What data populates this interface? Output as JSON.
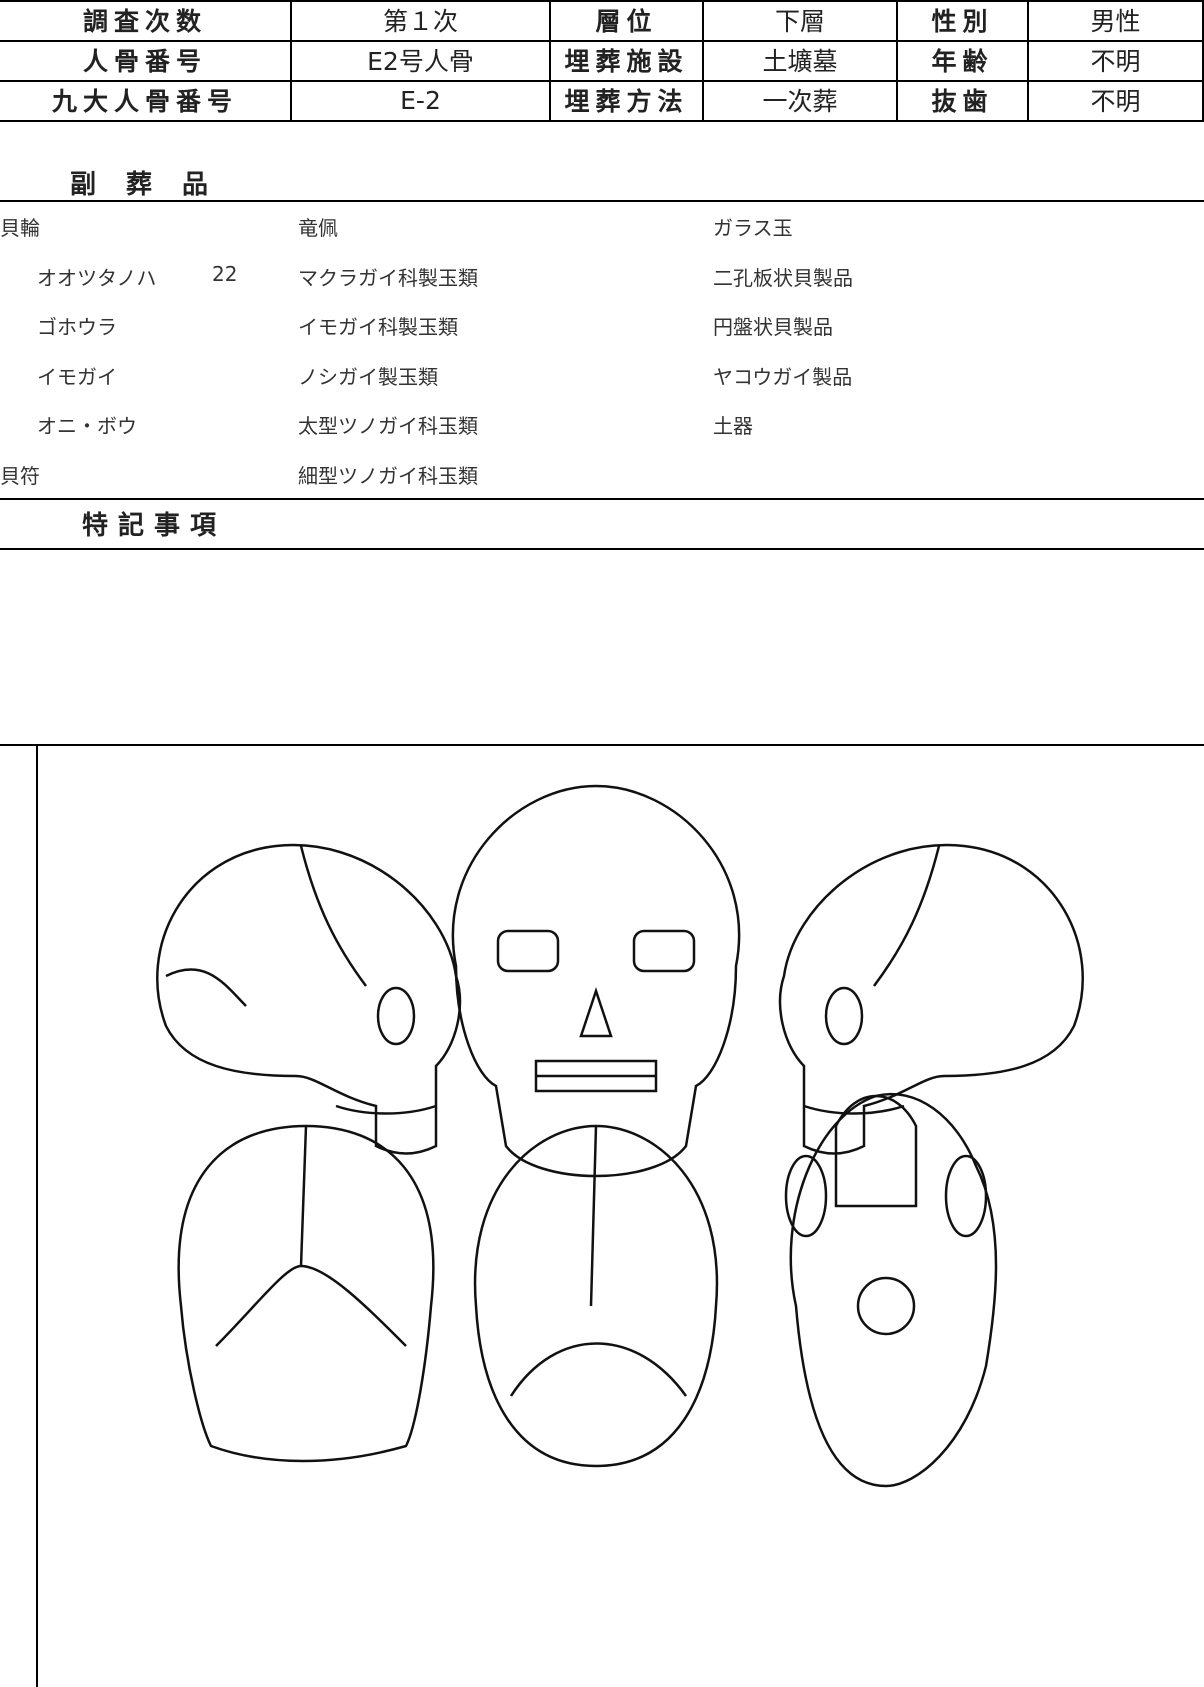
{
  "header": {
    "rows": [
      [
        "調査次数",
        "第１次",
        "層位",
        "下層",
        "性別",
        "男性"
      ],
      [
        "人骨番号",
        "E2号人骨",
        "埋葬施設",
        "土壙墓",
        "年齢",
        "不明"
      ],
      [
        "九大人骨番号",
        "E-2",
        "埋葬方法",
        "一次葬",
        "抜歯",
        "不明"
      ]
    ]
  },
  "goods": {
    "title": "副葬品",
    "column_1": [
      {
        "group": "貝輪",
        "items": [
          {
            "name": "オオツタノハ",
            "count": 22
          },
          {
            "name": "ゴホウラ"
          },
          {
            "name": "イモガイ"
          },
          {
            "name": "オニ・ボウ"
          }
        ]
      },
      {
        "group": "貝符",
        "items": []
      }
    ],
    "column_2": [
      "竜佩",
      "マクラガイ科製玉類",
      "イモガイ科製玉類",
      "ノシガイ製玉類",
      "太型ツノガイ科玉類",
      "細型ツノガイ科玉類"
    ],
    "column_3": [
      "ガラス玉",
      "二孔板状貝製品",
      "円盤状貝製品",
      "ヤコウガイ製品",
      "土器"
    ]
  },
  "notes": {
    "title": "特記事項"
  }
}
